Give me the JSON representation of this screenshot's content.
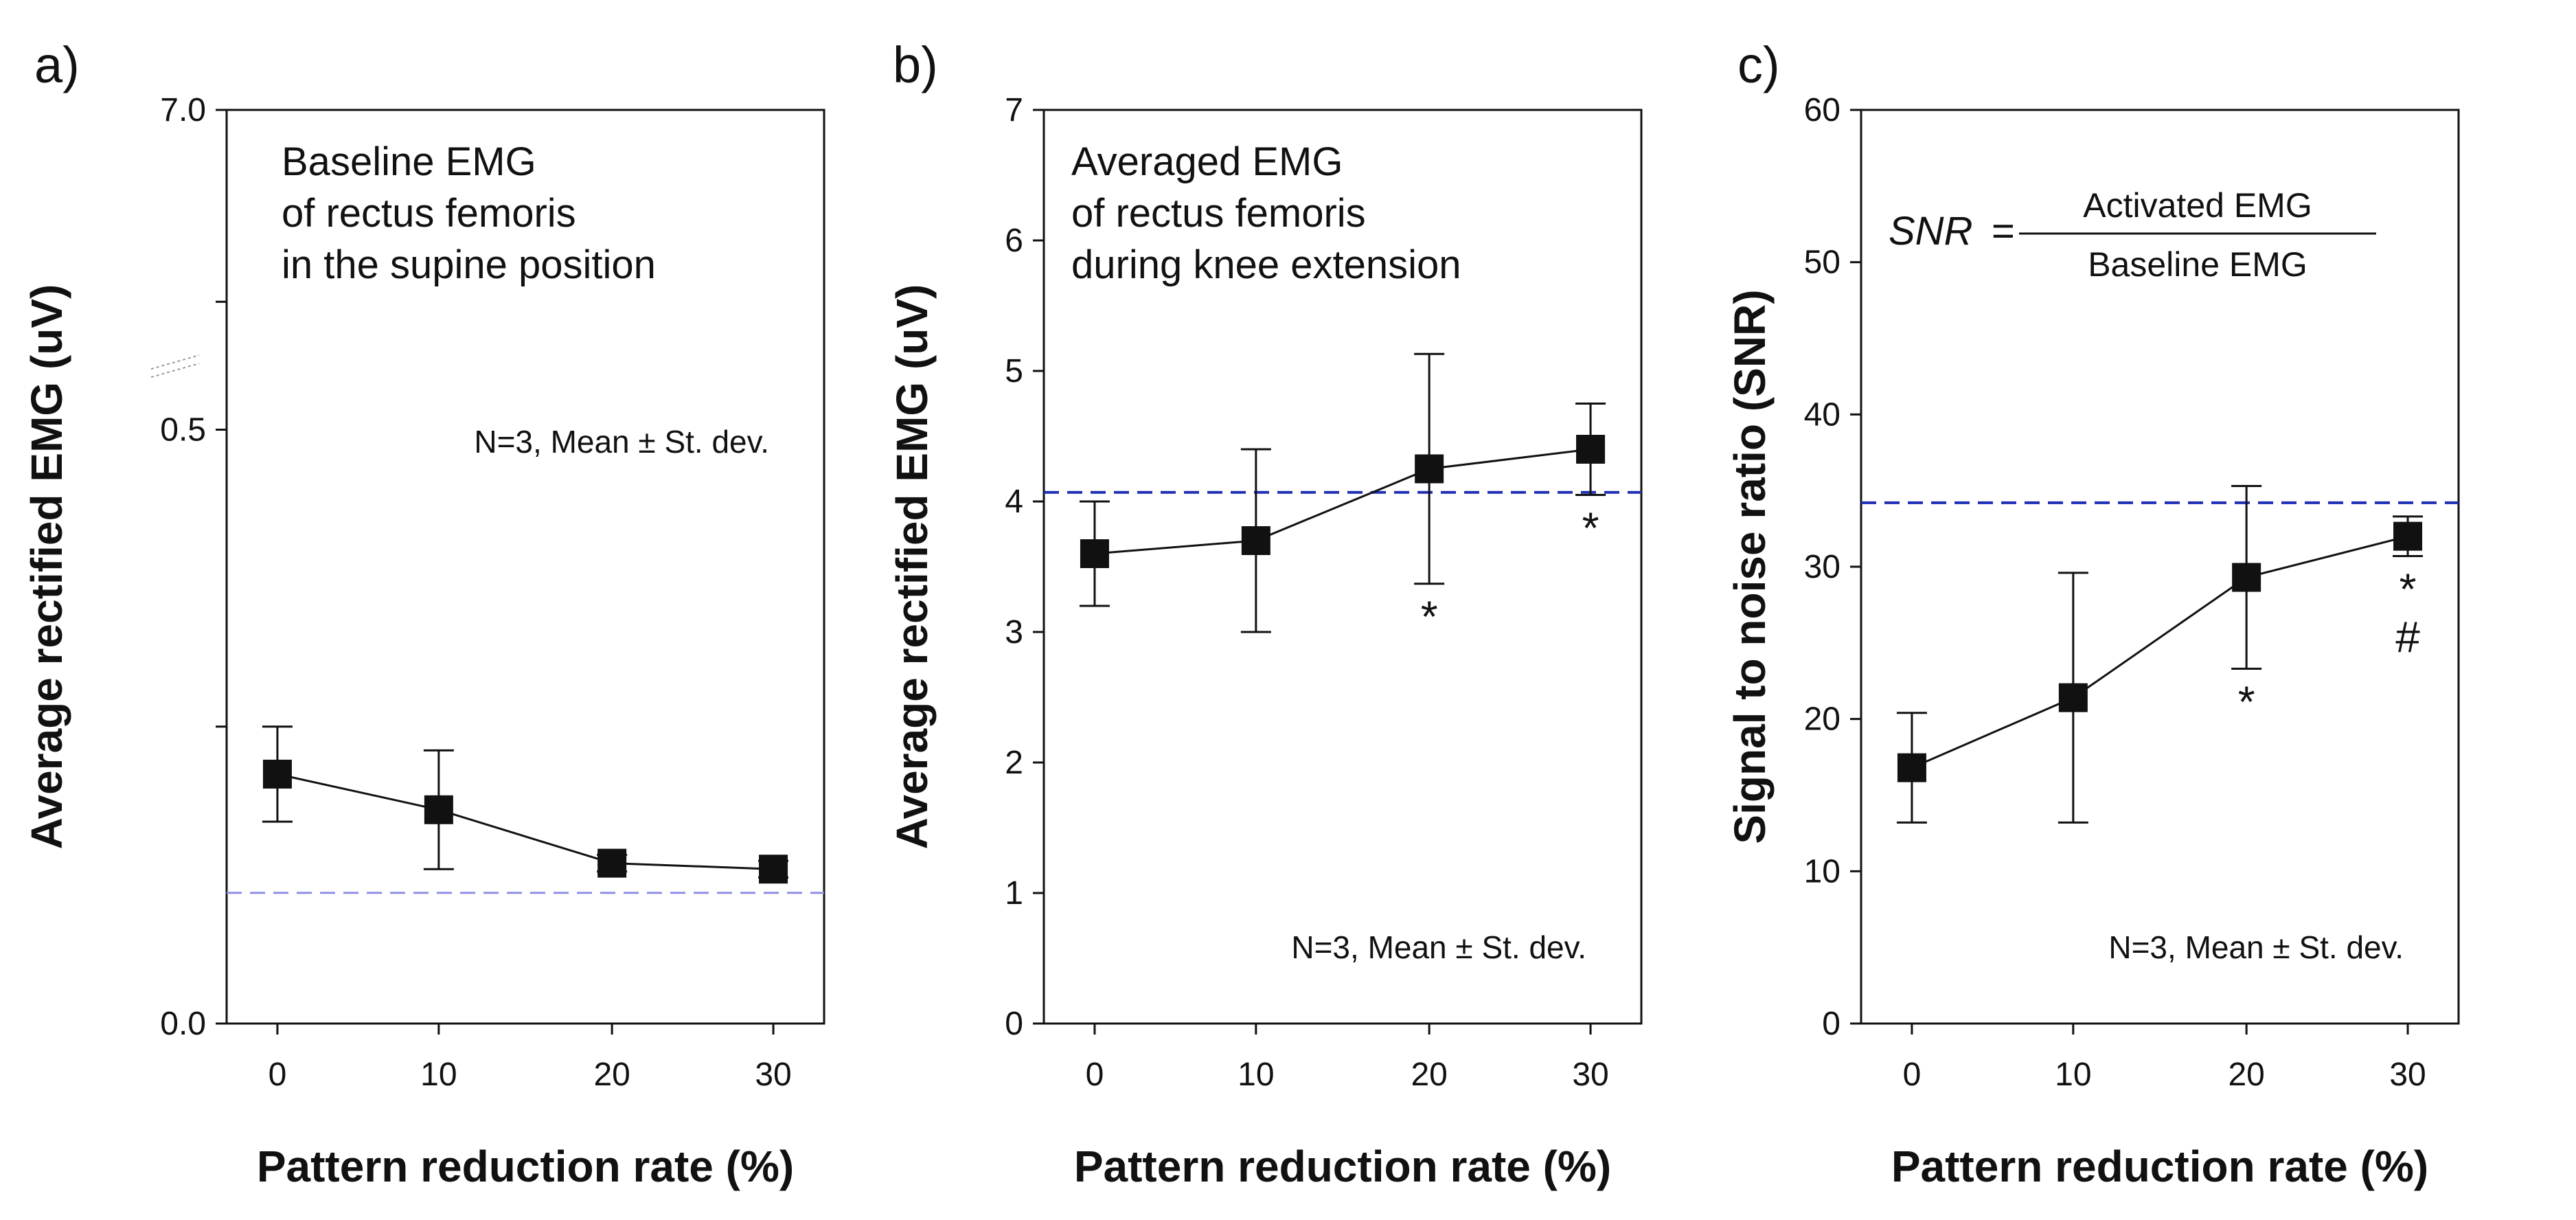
{
  "chart_data": [
    {
      "panel": "a)",
      "type": "line",
      "annotation_lines": [
        "Baseline EMG",
        "of rectus femoris",
        "in the supine position"
      ],
      "note": "N=3, Mean ± St. dev.",
      "xlabel": "Pattern reduction rate (%)",
      "ylabel": "Average rectified EMG (uV)",
      "y_axis_break": true,
      "y_tick_labels": [
        "0.0",
        "0.5",
        "7.0"
      ],
      "x": [
        0,
        10,
        20,
        30
      ],
      "x_tick_labels": [
        "0",
        "10",
        "20",
        "30"
      ],
      "y": [
        0.21,
        0.18,
        0.135,
        0.13
      ],
      "y_err": [
        0.04,
        0.05,
        0.007,
        0.007
      ],
      "reference_line": 0.11,
      "reference_color": "#8f8fe6",
      "significance": []
    },
    {
      "panel": "b)",
      "type": "line",
      "annotation_lines": [
        "Averaged EMG",
        "of rectus femoris",
        "during knee extension"
      ],
      "note": "N=3, Mean ± St. dev.",
      "xlabel": "Pattern reduction rate (%)",
      "ylabel": "Average rectified EMG (uV)",
      "ylim": [
        0,
        7
      ],
      "y_ticks": [
        0,
        1,
        2,
        3,
        4,
        5,
        6,
        7
      ],
      "x": [
        0,
        10,
        20,
        30
      ],
      "x_tick_labels": [
        "0",
        "10",
        "20",
        "30"
      ],
      "y": [
        3.6,
        3.7,
        4.25,
        4.4
      ],
      "y_err": [
        0.4,
        0.7,
        0.88,
        0.35
      ],
      "reference_line": 4.07,
      "reference_color": "#1f2fb5",
      "significance": [
        {
          "x": 20,
          "marks": [
            "*"
          ],
          "position": "below"
        },
        {
          "x": 30,
          "marks": [
            "*"
          ],
          "position": "below"
        }
      ]
    },
    {
      "panel": "c)",
      "type": "line",
      "formula": {
        "lhs": "SNR",
        "eq": "=",
        "numerator": "Activated EMG",
        "denominator": "Baseline EMG"
      },
      "note": "N=3, Mean ± St. dev.",
      "xlabel": "Pattern reduction rate (%)",
      "ylabel": "Signal to noise ratio (SNR)",
      "ylim": [
        0,
        60
      ],
      "y_ticks": [
        0,
        10,
        20,
        30,
        40,
        50,
        60
      ],
      "x": [
        0,
        10,
        20,
        30
      ],
      "x_tick_labels": [
        "0",
        "10",
        "20",
        "30"
      ],
      "y": [
        16.8,
        21.4,
        29.3,
        32
      ],
      "y_err": [
        3.6,
        8.2,
        6.0,
        1.3
      ],
      "reference_line": 34.2,
      "reference_color": "#1f2fb5",
      "significance": [
        {
          "x": 20,
          "marks": [
            "*"
          ],
          "position": "below"
        },
        {
          "x": 30,
          "marks": [
            "*",
            "#"
          ],
          "position": "below"
        }
      ]
    }
  ]
}
